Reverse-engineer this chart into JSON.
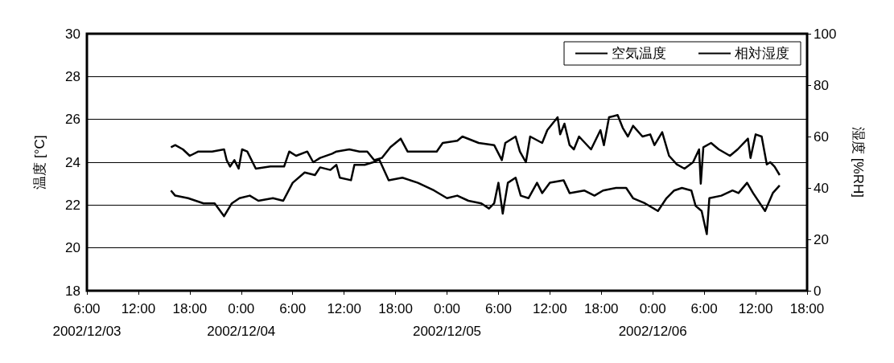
{
  "chart_data": {
    "type": "line",
    "ylabel": "温度 [°C]",
    "y2label": "湿度 [%RH]",
    "xlim": [
      "2002-12-03T06:00",
      "2002-12-06T18:00"
    ],
    "xticks": [
      {
        "value": "2002-12-03T06:00",
        "label": "6:00\n2002/12/03"
      },
      {
        "value": "2002-12-03T12:00",
        "label": "12:00"
      },
      {
        "value": "2002-12-03T18:00",
        "label": "18:00"
      },
      {
        "value": "2002-12-04T00:00",
        "label": "0:00\n2002/12/04"
      },
      {
        "value": "2002-12-04T06:00",
        "label": "6:00"
      },
      {
        "value": "2002-12-04T12:00",
        "label": "12:00"
      },
      {
        "value": "2002-12-04T18:00",
        "label": "18:00"
      },
      {
        "value": "2002-12-05T00:00",
        "label": "0:00\n2002/12/05"
      },
      {
        "value": "2002-12-05T06:00",
        "label": "6:00"
      },
      {
        "value": "2002-12-05T12:00",
        "label": "12:00"
      },
      {
        "value": "2002-12-05T18:00",
        "label": "18:00"
      },
      {
        "value": "2002-12-06T00:00",
        "label": "0:00\n2002/12/06"
      },
      {
        "value": "2002-12-06T06:00",
        "label": "6:00"
      },
      {
        "value": "2002-12-06T12:00",
        "label": "12:00"
      },
      {
        "value": "2002-12-06T18:00",
        "label": "18:00"
      }
    ],
    "ylim": [
      18,
      30
    ],
    "yticks": [
      18,
      20,
      22,
      24,
      26,
      28,
      30
    ],
    "y2lim": [
      0,
      100
    ],
    "y2ticks": [
      0,
      20,
      40,
      60,
      80,
      100
    ],
    "grid": "y",
    "legend": "top right",
    "marker": "none",
    "line_style": "solid",
    "series": [
      {
        "name": "空気温度",
        "color": "#000000",
        "x": [
          "2002-12-03T15:48",
          "2002-12-03T16:18",
          "2002-12-03T17:12",
          "2002-12-03T18:00",
          "2002-12-03T19:00",
          "2002-12-03T20:36",
          "2002-12-03T22:00",
          "2002-12-03T22:18",
          "2002-12-03T22:42",
          "2002-12-03T23:12",
          "2002-12-03T23:42",
          "2002-12-04T00:06",
          "2002-12-04T00:42",
          "2002-12-04T01:42",
          "2002-12-04T03:24",
          "2002-12-04T05:00",
          "2002-12-04T05:36",
          "2002-12-04T06:24",
          "2002-12-04T07:42",
          "2002-12-04T08:24",
          "2002-12-04T09:12",
          "2002-12-04T10:36",
          "2002-12-04T11:06",
          "2002-12-04T12:36",
          "2002-12-04T13:48",
          "2002-12-04T14:42",
          "2002-12-04T15:30",
          "2002-12-04T16:24",
          "2002-12-04T17:24",
          "2002-12-04T18:36",
          "2002-12-04T19:24",
          "2002-12-04T20:54",
          "2002-12-04T22:48",
          "2002-12-04T23:30",
          "2002-12-05T01:12",
          "2002-12-05T01:48",
          "2002-12-05T03:42",
          "2002-12-05T05:30",
          "2002-12-05T06:24",
          "2002-12-05T06:48",
          "2002-12-05T08:00",
          "2002-12-05T08:30",
          "2002-12-05T09:12",
          "2002-12-05T09:42",
          "2002-12-05T11:06",
          "2002-12-05T11:42",
          "2002-12-05T12:54",
          "2002-12-05T13:12",
          "2002-12-05T13:42",
          "2002-12-05T14:18",
          "2002-12-05T14:48",
          "2002-12-05T15:24",
          "2002-12-05T16:48",
          "2002-12-05T17:54",
          "2002-12-05T18:18",
          "2002-12-05T18:54",
          "2002-12-05T19:54",
          "2002-12-05T20:30",
          "2002-12-05T21:06",
          "2002-12-05T21:42",
          "2002-12-05T22:48",
          "2002-12-05T23:42",
          "2002-12-06T00:12",
          "2002-12-06T01:06",
          "2002-12-06T01:54",
          "2002-12-06T02:48",
          "2002-12-06T03:42",
          "2002-12-06T04:42",
          "2002-12-06T05:24",
          "2002-12-06T05:36",
          "2002-12-06T05:54",
          "2002-12-06T06:48",
          "2002-12-06T07:42",
          "2002-12-06T09:00",
          "2002-12-06T09:54",
          "2002-12-06T11:06",
          "2002-12-06T11:24",
          "2002-12-06T12:00",
          "2002-12-06T12:42",
          "2002-12-06T13:18",
          "2002-12-06T13:42",
          "2002-12-06T14:12",
          "2002-12-06T14:48"
        ],
        "values": [
          24.7,
          24.8,
          24.6,
          24.3,
          24.5,
          24.5,
          24.6,
          24.1,
          23.8,
          24.1,
          23.7,
          24.6,
          24.5,
          23.7,
          23.8,
          23.8,
          24.5,
          24.3,
          24.5,
          24.0,
          24.2,
          24.4,
          24.5,
          24.6,
          24.5,
          24.5,
          24.1,
          24.2,
          24.7,
          25.1,
          24.5,
          24.5,
          24.5,
          24.9,
          25.0,
          25.2,
          24.9,
          24.8,
          24.1,
          24.9,
          25.2,
          24.5,
          24.0,
          25.2,
          24.9,
          25.5,
          26.1,
          25.3,
          25.8,
          24.8,
          24.6,
          25.2,
          24.6,
          25.5,
          24.8,
          26.1,
          26.2,
          25.6,
          25.2,
          25.7,
          25.2,
          25.3,
          24.8,
          25.4,
          24.3,
          23.9,
          23.7,
          24.0,
          24.6,
          23.0,
          24.7,
          24.9,
          24.6,
          24.3,
          24.6,
          25.1,
          24.2,
          25.3,
          25.2,
          23.9,
          24.0,
          23.8,
          23.4
        ]
      },
      {
        "name": "相対湿度",
        "color": "#000000",
        "axis": "y2",
        "x": [
          "2002-12-03T15:48",
          "2002-12-03T16:18",
          "2002-12-03T17:48",
          "2002-12-03T19:36",
          "2002-12-03T20:54",
          "2002-12-03T22:00",
          "2002-12-03T22:54",
          "2002-12-03T23:48",
          "2002-12-04T01:00",
          "2002-12-04T02:00",
          "2002-12-04T03:42",
          "2002-12-04T04:54",
          "2002-12-04T06:00",
          "2002-12-04T07:24",
          "2002-12-04T08:36",
          "2002-12-04T09:12",
          "2002-12-04T10:24",
          "2002-12-04T11:06",
          "2002-12-04T11:30",
          "2002-12-04T12:48",
          "2002-12-04T13:12",
          "2002-12-04T14:24",
          "2002-12-04T15:24",
          "2002-12-04T16:06",
          "2002-12-04T17:12",
          "2002-12-04T18:48",
          "2002-12-04T20:36",
          "2002-12-04T22:30",
          "2002-12-05T00:00",
          "2002-12-05T01:12",
          "2002-12-05T02:30",
          "2002-12-05T04:00",
          "2002-12-05T04:54",
          "2002-12-05T05:30",
          "2002-12-05T06:00",
          "2002-12-05T06:30",
          "2002-12-05T07:06",
          "2002-12-05T08:00",
          "2002-12-05T08:36",
          "2002-12-05T09:30",
          "2002-12-05T10:30",
          "2002-12-05T11:06",
          "2002-12-05T12:00",
          "2002-12-05T13:36",
          "2002-12-05T14:18",
          "2002-12-05T16:00",
          "2002-12-05T17:12",
          "2002-12-05T18:12",
          "2002-12-05T19:42",
          "2002-12-05T20:54",
          "2002-12-05T21:42",
          "2002-12-05T23:06",
          "2002-12-06T00:36",
          "2002-12-06T01:36",
          "2002-12-06T02:30",
          "2002-12-06T03:24",
          "2002-12-06T04:30",
          "2002-12-06T05:00",
          "2002-12-06T05:42",
          "2002-12-06T06:18",
          "2002-12-06T06:36",
          "2002-12-06T08:00",
          "2002-12-06T09:18",
          "2002-12-06T10:00",
          "2002-12-06T11:00",
          "2002-12-06T11:42",
          "2002-12-06T13:06",
          "2002-12-06T14:00",
          "2002-12-06T14:48"
        ],
        "values": [
          39,
          37,
          36,
          34,
          34,
          29,
          34,
          36,
          37,
          35,
          36,
          35,
          42,
          46,
          45,
          48,
          47,
          49,
          44,
          43,
          49,
          49,
          50,
          51,
          43,
          44,
          42,
          39,
          36,
          37,
          35,
          34,
          32,
          34,
          42,
          30,
          42,
          44,
          37,
          36,
          42,
          38,
          42,
          43,
          38,
          39,
          37,
          39,
          40,
          40,
          36,
          34,
          31,
          36,
          39,
          40,
          39,
          33,
          31,
          22,
          36,
          37,
          39,
          38,
          42,
          38,
          31,
          38,
          41
        ]
      }
    ]
  }
}
